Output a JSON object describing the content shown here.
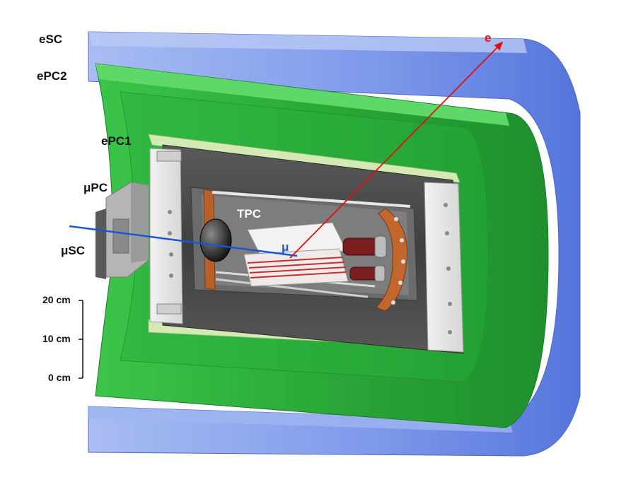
{
  "labels": {
    "esc": "eSC",
    "epc2": "ePC2",
    "epc1": "ePC1",
    "mupc": "μPC",
    "musc": "μSC",
    "tpc": "TPC",
    "electron": "e",
    "muon": "μ"
  },
  "scale": {
    "ticks": [
      "20 cm",
      "10 cm",
      "0 cm"
    ]
  },
  "colors": {
    "esc": "#6f8fe8",
    "epc2": "#2bb33a",
    "epc1": "#cfe6b0",
    "electron_track": "#e01010",
    "muon_track": "#1a56d6",
    "chamber": "#4a4a4a"
  }
}
